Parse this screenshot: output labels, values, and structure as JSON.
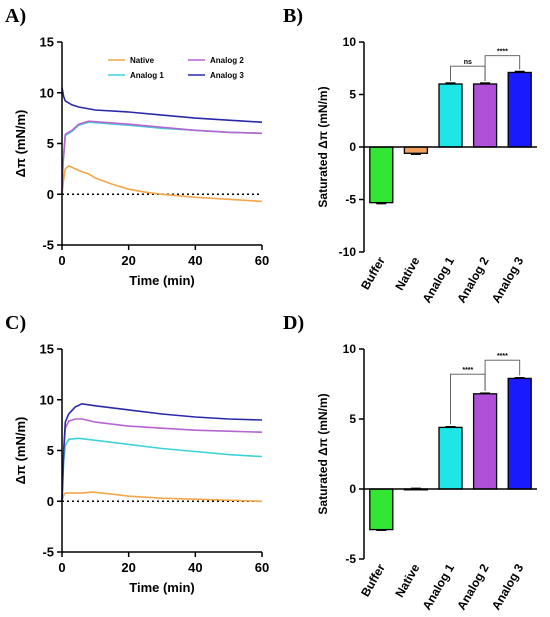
{
  "chart_data": [
    {
      "panel": "A)",
      "type": "line",
      "xlabel": "Time (min)",
      "ylabel": "Δπ (mN/m)",
      "xlim": [
        0,
        60
      ],
      "ylim": [
        -5,
        15
      ],
      "xticks": [
        "0",
        "20",
        "40",
        "60"
      ],
      "yticks": [
        "-5",
        "0",
        "5",
        "10",
        "15"
      ],
      "baseline": 0,
      "legend": "top-right",
      "series": [
        {
          "name": "Native",
          "color": "#f4a64a",
          "points": [
            [
              0,
              0
            ],
            [
              0.5,
              1.5
            ],
            [
              1,
              2.5
            ],
            [
              2,
              2.8
            ],
            [
              4,
              2.5
            ],
            [
              6,
              2.2
            ],
            [
              8,
              2.0
            ],
            [
              10,
              1.6
            ],
            [
              15,
              1.0
            ],
            [
              20,
              0.5
            ],
            [
              25,
              0.2
            ],
            [
              30,
              0.0
            ],
            [
              40,
              -0.3
            ],
            [
              50,
              -0.5
            ],
            [
              60,
              -0.7
            ]
          ]
        },
        {
          "name": "Analog 1",
          "color": "#3ed2d8",
          "points": [
            [
              0,
              0
            ],
            [
              0.3,
              3
            ],
            [
              1,
              5.8
            ],
            [
              3,
              6.2
            ],
            [
              5,
              6.8
            ],
            [
              8,
              7.1
            ],
            [
              12,
              7.0
            ],
            [
              20,
              6.8
            ],
            [
              30,
              6.5
            ],
            [
              40,
              6.3
            ],
            [
              50,
              6.1
            ],
            [
              60,
              6.0
            ]
          ]
        },
        {
          "name": "Analog 2",
          "color": "#b664d0",
          "points": [
            [
              0,
              0
            ],
            [
              0.3,
              3
            ],
            [
              1,
              5.9
            ],
            [
              3,
              6.3
            ],
            [
              5,
              6.9
            ],
            [
              8,
              7.2
            ],
            [
              12,
              7.1
            ],
            [
              20,
              6.9
            ],
            [
              30,
              6.6
            ],
            [
              40,
              6.3
            ],
            [
              50,
              6.1
            ],
            [
              60,
              6.0
            ]
          ]
        },
        {
          "name": "Analog 3",
          "color": "#2a2aa8",
          "points": [
            [
              0,
              10.5
            ],
            [
              0.5,
              9.6
            ],
            [
              1,
              9.2
            ],
            [
              3,
              8.8
            ],
            [
              5,
              8.6
            ],
            [
              10,
              8.3
            ],
            [
              20,
              8.1
            ],
            [
              30,
              7.8
            ],
            [
              40,
              7.5
            ],
            [
              50,
              7.3
            ],
            [
              60,
              7.1
            ]
          ]
        }
      ]
    },
    {
      "panel": "B)",
      "type": "bar",
      "ylabel": "Saturated Δπ (mN/m)",
      "ylim": [
        -10,
        10
      ],
      "yticks": [
        "-10",
        "-5",
        "0",
        "5",
        "10"
      ],
      "categories": [
        "Buffer",
        "Native",
        "Analog 1",
        "Analog 2",
        "Analog 3"
      ],
      "values": [
        -5.3,
        -0.6,
        6.0,
        6.0,
        7.1
      ],
      "errors": [
        0.1,
        0.1,
        0.1,
        0.1,
        0.1
      ],
      "colors": [
        "#33e633",
        "#f4a160",
        "#1ee6e6",
        "#b050d8",
        "#1a1aff"
      ],
      "comparisons": [
        {
          "from": 2,
          "to": 3,
          "label": "ns",
          "level": 7.7
        },
        {
          "from": 3,
          "to": 4,
          "label": "****",
          "level": 8.7
        }
      ]
    },
    {
      "panel": "C)",
      "type": "line",
      "xlabel": "Time (min)",
      "ylabel": "Δπ (mN/m)",
      "xlim": [
        0,
        60
      ],
      "ylim": [
        -5,
        15
      ],
      "xticks": [
        "0",
        "20",
        "40",
        "60"
      ],
      "yticks": [
        "-5",
        "0",
        "5",
        "10",
        "15"
      ],
      "baseline": 0,
      "series": [
        {
          "name": "Native",
          "color": "#f4a64a",
          "points": [
            [
              0,
              0
            ],
            [
              0.5,
              0.6
            ],
            [
              1,
              0.8
            ],
            [
              3,
              0.8
            ],
            [
              6,
              0.8
            ],
            [
              9,
              0.9
            ],
            [
              12,
              0.8
            ],
            [
              15,
              0.7
            ],
            [
              20,
              0.5
            ],
            [
              30,
              0.3
            ],
            [
              40,
              0.2
            ],
            [
              50,
              0.1
            ],
            [
              60,
              0.0
            ]
          ]
        },
        {
          "name": "Analog 1",
          "color": "#3ed2d8",
          "points": [
            [
              0,
              0
            ],
            [
              0.5,
              4
            ],
            [
              1,
              5.5
            ],
            [
              2,
              6.1
            ],
            [
              5,
              6.2
            ],
            [
              10,
              6.0
            ],
            [
              20,
              5.6
            ],
            [
              30,
              5.2
            ],
            [
              40,
              4.9
            ],
            [
              50,
              4.6
            ],
            [
              60,
              4.4
            ]
          ]
        },
        {
          "name": "Analog 2",
          "color": "#b664d0",
          "points": [
            [
              0,
              0
            ],
            [
              0.5,
              5
            ],
            [
              1,
              7.2
            ],
            [
              2,
              7.9
            ],
            [
              4,
              8.1
            ],
            [
              6,
              8.1
            ],
            [
              10,
              7.8
            ],
            [
              20,
              7.4
            ],
            [
              30,
              7.2
            ],
            [
              40,
              7.0
            ],
            [
              50,
              6.9
            ],
            [
              60,
              6.8
            ]
          ]
        },
        {
          "name": "Analog 3",
          "color": "#2a2aa8",
          "points": [
            [
              0,
              0
            ],
            [
              0.5,
              5
            ],
            [
              1,
              7.8
            ],
            [
              2,
              8.6
            ],
            [
              4,
              9.3
            ],
            [
              6,
              9.6
            ],
            [
              10,
              9.4
            ],
            [
              20,
              9.0
            ],
            [
              30,
              8.6
            ],
            [
              40,
              8.3
            ],
            [
              50,
              8.1
            ],
            [
              60,
              8.0
            ]
          ]
        }
      ]
    },
    {
      "panel": "D)",
      "type": "bar",
      "ylabel": "Saturated Δπ (mN/m)",
      "ylim": [
        -5,
        10
      ],
      "yticks": [
        "-5",
        "0",
        "5",
        "10"
      ],
      "categories": [
        "Buffer",
        "Native",
        "Analog 1",
        "Analog 2",
        "Analog 3"
      ],
      "values": [
        -2.9,
        0.0,
        4.4,
        6.8,
        7.9
      ],
      "errors": [
        0.05,
        0.05,
        0.05,
        0.05,
        0.05
      ],
      "colors": [
        "#33e633",
        "#f4a160",
        "#1ee6e6",
        "#b050d8",
        "#1a1aff"
      ],
      "comparisons": [
        {
          "from": 2,
          "to": 3,
          "label": "****",
          "level": 8.2
        },
        {
          "from": 3,
          "to": 4,
          "label": "****",
          "level": 9.2
        }
      ]
    }
  ]
}
